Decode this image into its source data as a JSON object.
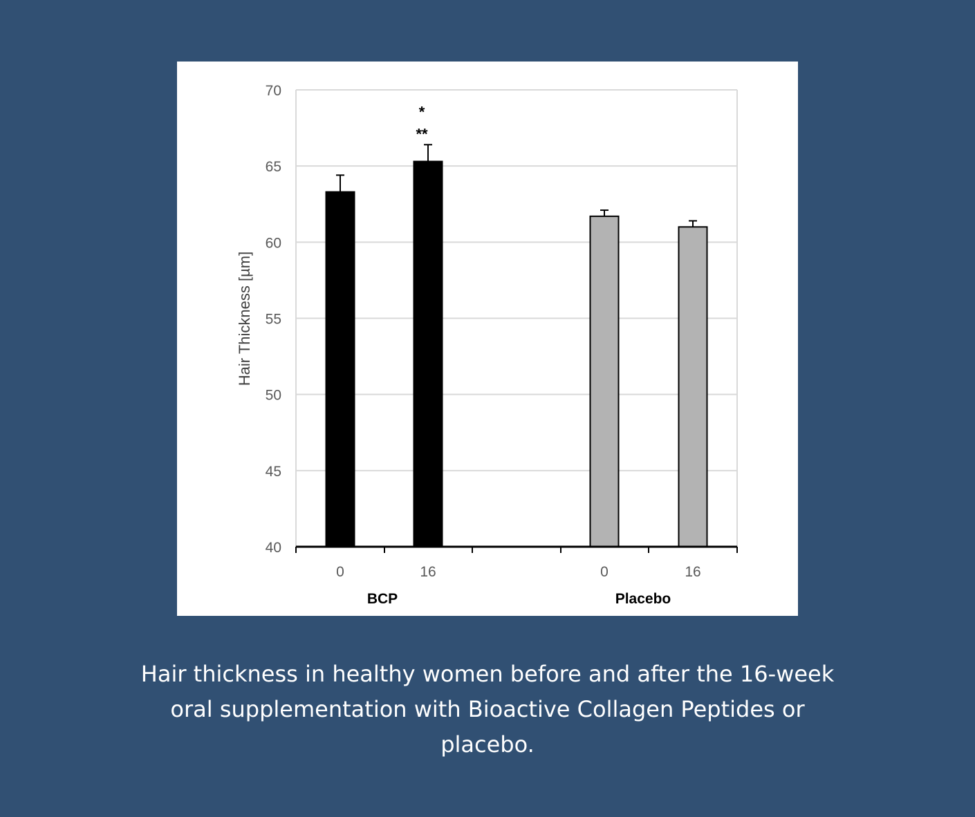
{
  "colors": {
    "background": "#315073",
    "panel": "#ffffff",
    "bcp_bar": "#000000",
    "placebo_bar": "#b3b3b3",
    "grid": "#d9d9d9",
    "axis": "#000000",
    "tick_label": "#595959",
    "caption_text": "#ffffff"
  },
  "chart_data": {
    "type": "bar",
    "ylabel": "Hair Thickness [µm]",
    "ylim": [
      40,
      70
    ],
    "yticks": [
      40,
      45,
      50,
      55,
      60,
      65,
      70
    ],
    "grid": true,
    "groups": [
      {
        "label": "BCP",
        "color": "#000000",
        "bars": [
          {
            "category": "0",
            "value": 63.3,
            "error": 1.1,
            "annotation": []
          },
          {
            "category": "16",
            "value": 65.3,
            "error": 1.1,
            "annotation": [
              "*",
              "**"
            ]
          }
        ]
      },
      {
        "label": "Placebo",
        "color": "#b3b3b3",
        "bars": [
          {
            "category": "0",
            "value": 61.7,
            "error": 0.4,
            "annotation": []
          },
          {
            "category": "16",
            "value": 61.0,
            "error": 0.4,
            "annotation": []
          }
        ]
      }
    ]
  },
  "caption": {
    "lines": [
      "Hair thickness in healthy women before and after the 16-week",
      "oral supplementation with Bioactive Collagen Peptides or",
      "placebo."
    ]
  }
}
